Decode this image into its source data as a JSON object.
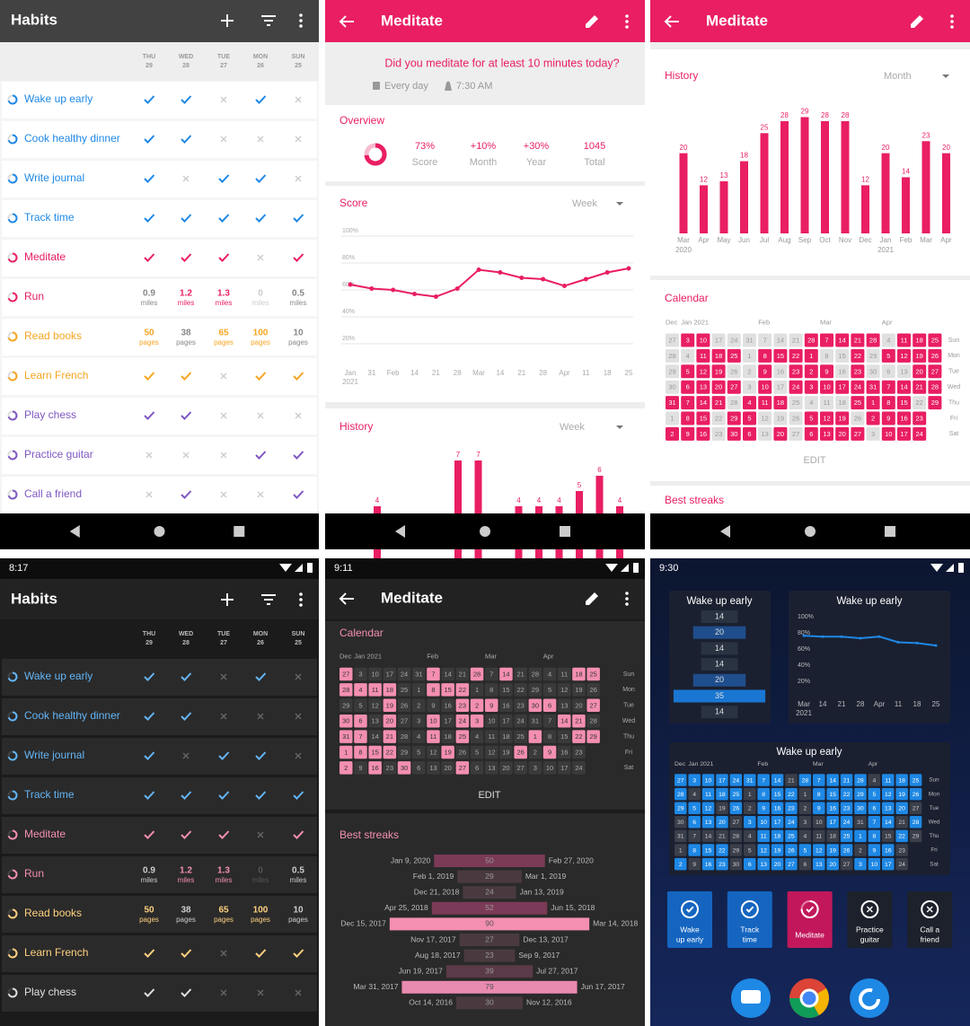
{
  "status_times": [
    "8:17",
    "9:11",
    "9:30"
  ],
  "habits": {
    "title": "Habits",
    "days": [
      {
        "name": "THU",
        "number": 29
      },
      {
        "name": "WED",
        "number": 28
      },
      {
        "name": "TUE",
        "number": 27
      },
      {
        "name": "MON",
        "number": 26
      },
      {
        "name": "SUN",
        "number": 25
      }
    ],
    "items": [
      {
        "name": "Wake up early",
        "color": "#1e88e5",
        "dark_color": "#64b5f6",
        "values": [
          1,
          1,
          0,
          1,
          0
        ]
      },
      {
        "name": "Cook healthy dinner",
        "color": "#1e88e5",
        "dark_color": "#64b5f6",
        "values": [
          1,
          1,
          0,
          0,
          0
        ]
      },
      {
        "name": "Write journal",
        "color": "#1e88e5",
        "dark_color": "#64b5f6",
        "values": [
          1,
          0,
          1,
          1,
          0
        ]
      },
      {
        "name": "Track time",
        "color": "#1e88e5",
        "dark_color": "#64b5f6",
        "values": [
          1,
          1,
          1,
          1,
          1
        ]
      },
      {
        "name": "Meditate",
        "color": "#e91e63",
        "dark_color": "#f48fb1",
        "values": [
          1,
          1,
          1,
          0,
          1
        ]
      },
      {
        "name": "Run",
        "color": "#e91e63",
        "dark_color": "#f48fb1",
        "values": [
          0.9,
          1.2,
          1.3,
          0,
          0.5
        ],
        "unit": "miles",
        "target": 1
      },
      {
        "name": "Read books",
        "color": "#f5a623",
        "dark_color": "#ffd180",
        "values": [
          50,
          38,
          65,
          100,
          10
        ],
        "unit": "pages",
        "target": 50
      },
      {
        "name": "Learn French",
        "color": "#f5a623",
        "dark_color": "#ffd180",
        "values": [
          1,
          1,
          0,
          1,
          1
        ]
      },
      {
        "name": "Play chess",
        "color": "#7e57c2",
        "dark_color": "#e0e0e0",
        "values": [
          1,
          1,
          0,
          0,
          0
        ]
      },
      {
        "name": "Practice guitar",
        "color": "#7e57c2",
        "dark_color": "#e0e0e0",
        "values": [
          0,
          0,
          0,
          1,
          1
        ]
      },
      {
        "name": "Call a friend",
        "color": "#7e57c2",
        "dark_color": "#e0e0e0",
        "values": [
          0,
          1,
          0,
          0,
          1
        ]
      }
    ]
  },
  "meditate": {
    "title": "Meditate",
    "question": "Did you meditate for at least 10 minutes today?",
    "frequency": "Every day",
    "reminder": "7:30 AM",
    "overview": {
      "title": "Overview",
      "values": [
        73,
        10,
        30,
        1045
      ],
      "value_labels": [
        "73%",
        "+10%",
        "+30%",
        "1045"
      ],
      "labels": [
        "Score",
        "Month",
        "Year",
        "Total"
      ]
    },
    "score_chart": {
      "type": "line",
      "title": "Score",
      "period": "Week",
      "categories": [
        [
          "Jan",
          "2021"
        ],
        [
          "31"
        ],
        [
          "Feb"
        ],
        [
          "14"
        ],
        [
          "21"
        ],
        [
          "28"
        ],
        [
          "Mar"
        ],
        [
          "14"
        ],
        [
          "21"
        ],
        [
          "28"
        ],
        [
          "Apr"
        ],
        [
          "11"
        ],
        [
          "18"
        ],
        [
          "25"
        ]
      ],
      "values": [
        64,
        61,
        60,
        57,
        55,
        61,
        75,
        73,
        69,
        68,
        63,
        68,
        73,
        76
      ],
      "ylim": [
        0,
        100
      ],
      "yticks": [
        {
          "value": 20,
          "label": "20%"
        },
        {
          "value": 40,
          "label": "40%"
        },
        {
          "value": 60,
          "label": "60%"
        },
        {
          "value": 80,
          "label": "80%"
        },
        {
          "value": 100,
          "label": "100%"
        }
      ],
      "grid": true,
      "color": "#e91e63"
    },
    "history_week": {
      "type": "bar",
      "title": "History",
      "period": "Week",
      "values": [
        4,
        null,
        null,
        null,
        7,
        7,
        null,
        4,
        4,
        4,
        5,
        6,
        4
      ],
      "ylim": [
        0,
        7
      ],
      "color": "#e91e63"
    },
    "history_month": {
      "type": "bar",
      "title": "History",
      "period": "Month",
      "categories": [
        [
          "Mar",
          "2020"
        ],
        [
          "Apr"
        ],
        [
          "May"
        ],
        [
          "Jun"
        ],
        [
          "Jul"
        ],
        [
          "Aug"
        ],
        [
          "Sep"
        ],
        [
          "Oct"
        ],
        [
          "Nov"
        ],
        [
          "Dec"
        ],
        [
          "Jan",
          "2021"
        ],
        [
          "Feb"
        ],
        [
          "Mar"
        ],
        [
          "Apr"
        ]
      ],
      "values": [
        20,
        12,
        13,
        18,
        25,
        28,
        29,
        28,
        28,
        12,
        20,
        14,
        23,
        20
      ],
      "ylim": [
        0,
        30
      ],
      "color": "#e91e63"
    },
    "edit": "EDIT",
    "best_streaks": {
      "title": "Best streaks",
      "rows": [
        {
          "start": "Jan 9, 2020",
          "length": 50,
          "end": "Feb 27, 2020",
          "color": "#7b3a57"
        },
        {
          "start": "Feb 1, 2019",
          "length": 29,
          "end": "Mar 1, 2019",
          "color": "#4a3a40"
        },
        {
          "start": "Dec 21, 2018",
          "length": 24,
          "end": "Jan 13, 2019",
          "color": "#4a3a40"
        },
        {
          "start": "Apr 25, 2018",
          "length": 52,
          "end": "Jun 15, 2018",
          "color": "#7b3a57"
        },
        {
          "start": "Dec 15, 2017",
          "length": 90,
          "end": "Mar 14, 2018",
          "color": "#f48fb1"
        },
        {
          "start": "Nov 17, 2017",
          "length": 27,
          "end": "Dec 13, 2017",
          "color": "#4a3a40"
        },
        {
          "start": "Aug 18, 2017",
          "length": 23,
          "end": "Sep 9, 2017",
          "color": "#4a3a40"
        },
        {
          "start": "Jun 19, 2017",
          "length": 39,
          "end": "Jul 27, 2017",
          "color": "#5a3a48"
        },
        {
          "start": "Mar 31, 2017",
          "length": 79,
          "end": "Jun 17, 2017",
          "color": "#e98ab0"
        },
        {
          "start": "Oct 14, 2016",
          "length": 30,
          "end": "Nov 12, 2016",
          "color": "#4a3a40"
        }
      ]
    }
  },
  "calendar_days": [
    [
      27,
      3,
      10,
      17,
      24,
      31,
      7,
      14,
      21,
      28,
      7,
      14,
      21,
      28,
      4,
      11,
      18,
      25
    ],
    [
      28,
      4,
      11,
      18,
      25,
      1,
      8,
      15,
      22,
      1,
      8,
      15,
      22,
      29,
      5,
      12,
      19,
      26
    ],
    [
      29,
      5,
      12,
      19,
      26,
      2,
      9,
      16,
      23,
      2,
      9,
      16,
      23,
      30,
      6,
      13,
      20,
      27
    ],
    [
      30,
      6,
      13,
      20,
      27,
      3,
      10,
      17,
      24,
      3,
      10,
      17,
      24,
      31,
      7,
      14,
      21,
      28
    ],
    [
      31,
      7,
      14,
      21,
      28,
      4,
      11,
      18,
      25,
      4,
      11,
      18,
      25,
      1,
      8,
      15,
      22,
      29
    ],
    [
      1,
      8,
      15,
      22,
      29,
      5,
      12,
      19,
      26,
      5,
      12,
      19,
      26,
      2,
      9,
      16,
      23
    ],
    [
      2,
      9,
      16,
      23,
      30,
      6,
      13,
      20,
      27,
      6,
      13,
      20,
      27,
      3,
      10,
      17,
      24
    ]
  ],
  "calendar_months": [
    "Dec",
    "Jan 2021",
    "Feb",
    "Mar",
    "Apr"
  ],
  "weekdays": [
    "Sun",
    "Mon",
    "Tue",
    "Wed",
    "Thu",
    "Fri",
    "Sat"
  ],
  "calendar_light": {
    "title": "Calendar",
    "on_color": "#e91e63",
    "off_color": "#e0e0e0",
    "marks": [
      "011000000111110111",
      "001110111100101111",
      "011100101110100011",
      "011110101111111111",
      "111101110000111101",
      "01101100011101111",
      "11101101011110111"
    ]
  },
  "calendar_dark": {
    "title": "Calendar",
    "on_color": "#f48fb1",
    "off_color": "#3a3a3a",
    "marks": [
      "100000100101000011",
      "111100111000000000",
      "000100001110011001",
      "110100101100000110",
      "110100101000010011",
      "11110001000010100",
      "10101000100000000"
    ]
  },
  "widgets": {
    "streak": {
      "title": "Wake up early",
      "values": [
        14,
        20,
        14,
        14,
        20,
        35,
        14
      ],
      "colors": [
        "#2a3342",
        "#1f4e8c",
        "#2a3342",
        "#2a3342",
        "#1f4e8c",
        "#1976d2",
        "#2a3342"
      ]
    },
    "score": {
      "type": "line",
      "title": "Wake up early",
      "categories": [
        [
          "Mar",
          "2021"
        ],
        [
          "14"
        ],
        [
          "21"
        ],
        [
          "28"
        ],
        [
          "Apr"
        ],
        [
          "11"
        ],
        [
          "18"
        ],
        [
          "25"
        ]
      ],
      "values": [
        83,
        82,
        82,
        80,
        82,
        75,
        74,
        71
      ],
      "ylim": [
        0,
        100
      ],
      "yticks": [
        {
          "value": 20,
          "label": "20%"
        },
        {
          "value": 40,
          "label": "40%"
        },
        {
          "value": 60,
          "label": "60%"
        },
        {
          "value": 80,
          "label": "80%"
        },
        {
          "value": 100,
          "label": "100%"
        }
      ],
      "color": "#1e88e5",
      "grid": false
    },
    "calendar": {
      "title": "Wake up early",
      "on_color": "#1e88e5",
      "off_color": "#3a3f4a",
      "marks": [
        "111111110111110111",
        "101110111011111111",
        "111010111011111110",
        "011101111001101101",
        "000000111000111010",
        "01110011111110110",
        "10110111101101110"
      ]
    },
    "buttons": [
      {
        "lines": [
          "Wake",
          "up early"
        ],
        "color": "#1565c0",
        "state": "check"
      },
      {
        "lines": [
          "Track",
          "time"
        ],
        "color": "#1565c0",
        "state": "check"
      },
      {
        "lines": [
          "Meditate"
        ],
        "color": "#c2185b",
        "state": "ring"
      },
      {
        "lines": [
          "Practice",
          "guitar"
        ],
        "color": "#1c212b",
        "state": "cross"
      },
      {
        "lines": [
          "Call a",
          "friend"
        ],
        "color": "#1c212b",
        "state": "cross"
      }
    ]
  }
}
